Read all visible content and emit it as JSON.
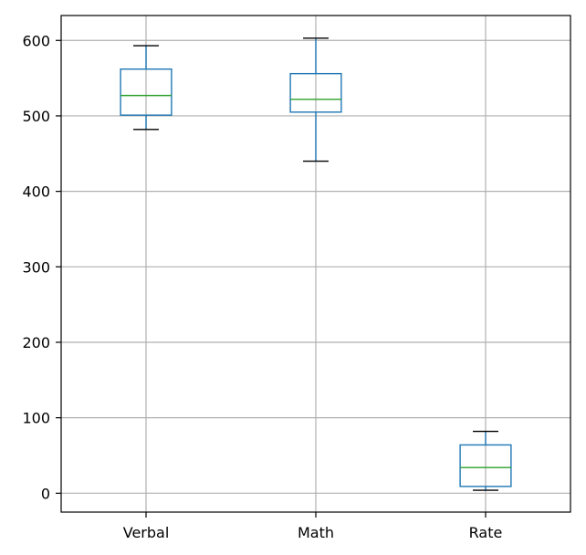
{
  "chart_data": {
    "type": "box",
    "title": "",
    "xlabel": "",
    "ylabel": "",
    "categories": [
      "Verbal",
      "Math",
      "Rate"
    ],
    "boxes": [
      {
        "name": "Verbal",
        "whisker_low": 482,
        "q1": 501,
        "median": 527,
        "q3": 562,
        "whisker_high": 593
      },
      {
        "name": "Math",
        "whisker_low": 440,
        "q1": 505,
        "median": 522,
        "q3": 556,
        "whisker_high": 603
      },
      {
        "name": "Rate",
        "whisker_low": 4,
        "q1": 9,
        "median": 34,
        "q3": 64,
        "whisker_high": 82
      }
    ],
    "ylim": [
      -25,
      633
    ],
    "yticks": [
      0,
      100,
      200,
      300,
      400,
      500,
      600
    ],
    "grid": true,
    "colors": {
      "box": "#1f77b4",
      "median": "#2ca02c",
      "whisker_cap": "#000000",
      "grid": "#b0b0b0"
    }
  }
}
